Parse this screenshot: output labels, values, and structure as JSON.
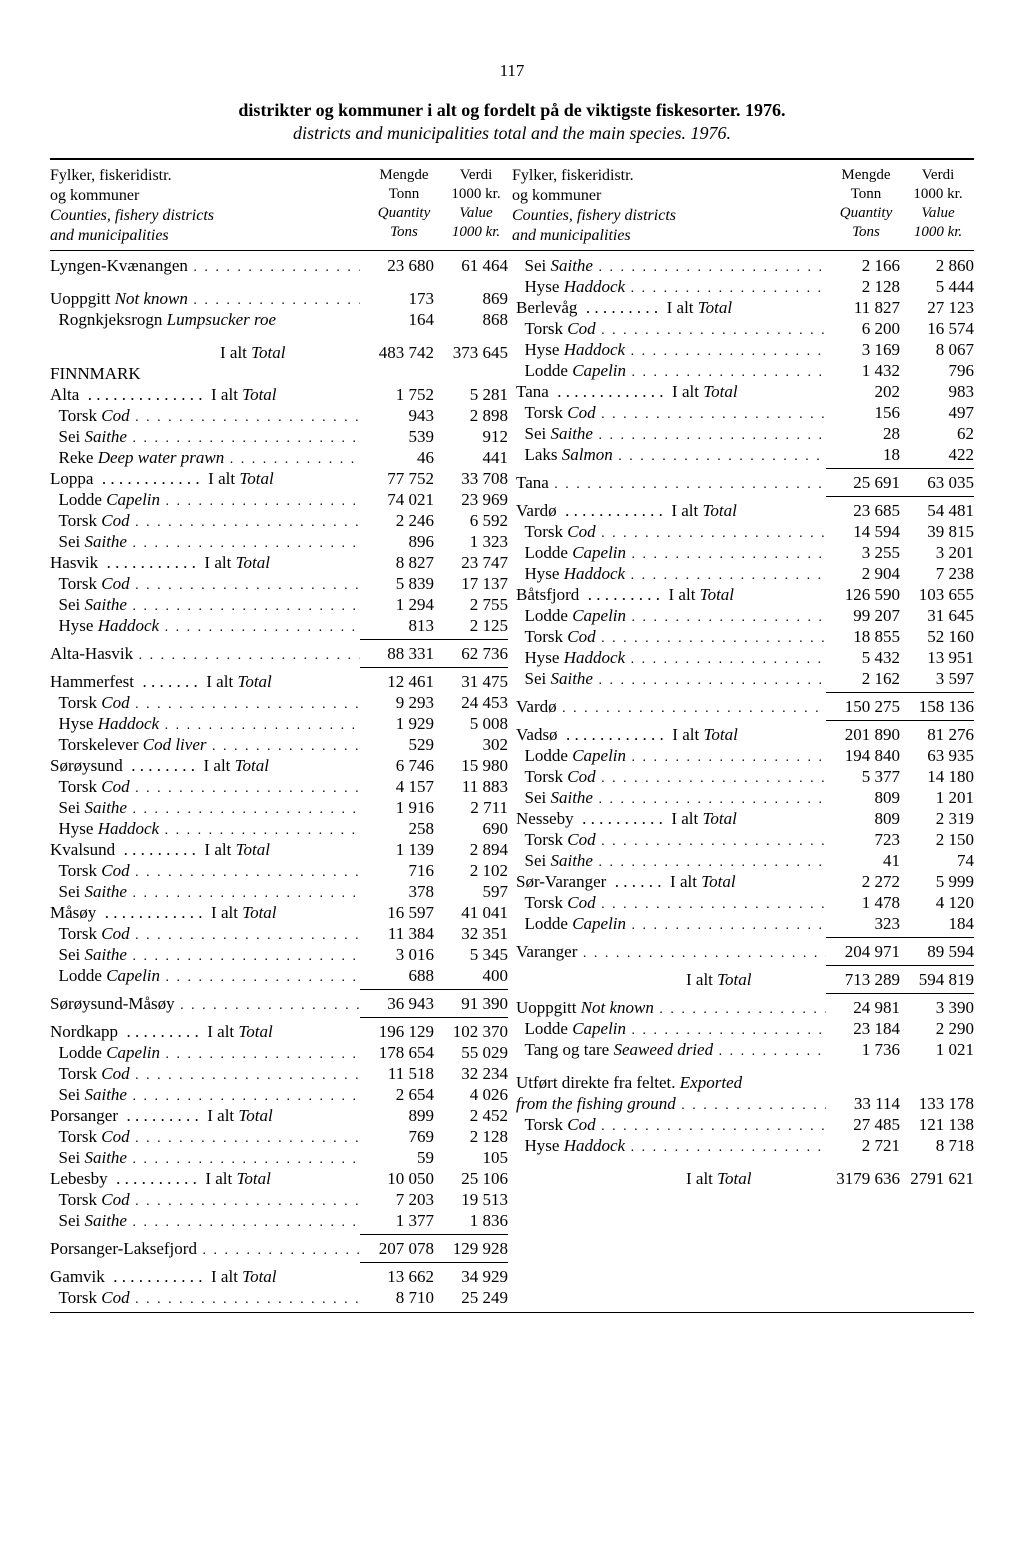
{
  "page_number": "117",
  "title_no": "distrikter og kommuner i alt og fordelt på de viktigste fiskesorter. 1976.",
  "title_en": "districts and municipalities total and the main species. 1976.",
  "header": {
    "label_no_1": "Fylker, fiskeridistr.",
    "label_no_2": "og kommuner",
    "label_en_1": "Counties, fishery districts",
    "label_en_2": "and municipalities",
    "qty_no": "Mengde",
    "qty_en": "Quantity",
    "qty_unit_no": "Tonn",
    "qty_unit_en": "Tons",
    "val_no": "Verdi",
    "val_en": "Value",
    "val_unit": "1000 kr."
  },
  "left": [
    {
      "label": "Lyngen-Kvænangen",
      "v1": "23 680",
      "v2": "61 464"
    },
    {
      "blank": true
    },
    {
      "label": "Uoppgitt <span class='it'>Not known</span>",
      "v1": "173",
      "v2": "869"
    },
    {
      "label": "&nbsp;&nbsp;Rognkjeksrogn <span class='it'>Lumpsucker roe</span>",
      "v1": "164",
      "v2": "868",
      "nodots": true
    },
    {
      "blank": true
    },
    {
      "label": "<span style='display:inline-block;width:170px'></span>I alt <span class='it'>Total</span>",
      "v1": "483 742",
      "v2": "373 645",
      "nodots": true
    },
    {
      "label": "<span class='region'>FINNMARK</span>",
      "v1": "",
      "v2": "",
      "nodots": true
    },
    {
      "label": "Alta &nbsp;.&nbsp;.&nbsp;.&nbsp;.&nbsp;.&nbsp;.&nbsp;.&nbsp;.&nbsp;.&nbsp;.&nbsp;.&nbsp;.&nbsp;.&nbsp;.&nbsp; I alt <span class='it'>Total</span>",
      "v1": "1 752",
      "v2": "5 281",
      "nodots": true
    },
    {
      "label": "&nbsp;&nbsp;Torsk <span class='it'>Cod</span>",
      "v1": "943",
      "v2": "2 898"
    },
    {
      "label": "&nbsp;&nbsp;Sei <span class='it'>Saithe</span>",
      "v1": "539",
      "v2": "912"
    },
    {
      "label": "&nbsp;&nbsp;Reke <span class='it'>Deep water prawn</span>",
      "v1": "46",
      "v2": "441"
    },
    {
      "label": "Loppa &nbsp;.&nbsp;.&nbsp;.&nbsp;.&nbsp;.&nbsp;.&nbsp;.&nbsp;.&nbsp;.&nbsp;.&nbsp;.&nbsp;.&nbsp; I alt <span class='it'>Total</span>",
      "v1": "77 752",
      "v2": "33 708",
      "nodots": true
    },
    {
      "label": "&nbsp;&nbsp;Lodde <span class='it'>Capelin</span>",
      "v1": "74 021",
      "v2": "23 969"
    },
    {
      "label": "&nbsp;&nbsp;Torsk <span class='it'>Cod</span>",
      "v1": "2 246",
      "v2": "6 592"
    },
    {
      "label": "&nbsp;&nbsp;Sei <span class='it'>Saithe</span>",
      "v1": "896",
      "v2": "1 323"
    },
    {
      "label": "Hasvik &nbsp;.&nbsp;.&nbsp;.&nbsp;.&nbsp;.&nbsp;.&nbsp;.&nbsp;.&nbsp;.&nbsp;.&nbsp;.&nbsp; I alt <span class='it'>Total</span>",
      "v1": "8 827",
      "v2": "23 747",
      "nodots": true
    },
    {
      "label": "&nbsp;&nbsp;Torsk <span class='it'>Cod</span>",
      "v1": "5 839",
      "v2": "17 137"
    },
    {
      "label": "&nbsp;&nbsp;Sei <span class='it'>Saithe</span>",
      "v1": "1 294",
      "v2": "2 755"
    },
    {
      "label": "&nbsp;&nbsp;Hyse <span class='it'>Haddock</span>",
      "v1": "813",
      "v2": "2 125"
    },
    {
      "sep": true
    },
    {
      "label": "Alta-Hasvik",
      "v1": "88 331",
      "v2": "62 736"
    },
    {
      "sep": true
    },
    {
      "label": "Hammerfest &nbsp;.&nbsp;.&nbsp;.&nbsp;.&nbsp;.&nbsp;.&nbsp;.&nbsp; I alt <span class='it'>Total</span>",
      "v1": "12 461",
      "v2": "31 475",
      "nodots": true
    },
    {
      "label": "&nbsp;&nbsp;Torsk <span class='it'>Cod</span>",
      "v1": "9 293",
      "v2": "24 453"
    },
    {
      "label": "&nbsp;&nbsp;Hyse <span class='it'>Haddock</span>",
      "v1": "1 929",
      "v2": "5 008"
    },
    {
      "label": "&nbsp;&nbsp;Torskelever <span class='it'>Cod liver</span>",
      "v1": "529",
      "v2": "302"
    },
    {
      "label": "Sørøysund &nbsp;.&nbsp;.&nbsp;.&nbsp;.&nbsp;.&nbsp;.&nbsp;.&nbsp;.&nbsp; I alt <span class='it'>Total</span>",
      "v1": "6 746",
      "v2": "15 980",
      "nodots": true
    },
    {
      "label": "&nbsp;&nbsp;Torsk <span class='it'>Cod</span>",
      "v1": "4 157",
      "v2": "11 883"
    },
    {
      "label": "&nbsp;&nbsp;Sei <span class='it'>Saithe</span>",
      "v1": "1 916",
      "v2": "2 711"
    },
    {
      "label": "&nbsp;&nbsp;Hyse <span class='it'>Haddock</span>",
      "v1": "258",
      "v2": "690"
    },
    {
      "label": "Kvalsund &nbsp;.&nbsp;.&nbsp;.&nbsp;.&nbsp;.&nbsp;.&nbsp;.&nbsp;.&nbsp;.&nbsp; I alt <span class='it'>Total</span>",
      "v1": "1 139",
      "v2": "2 894",
      "nodots": true
    },
    {
      "label": "&nbsp;&nbsp;Torsk <span class='it'>Cod</span>",
      "v1": "716",
      "v2": "2 102"
    },
    {
      "label": "&nbsp;&nbsp;Sei <span class='it'>Saithe</span>",
      "v1": "378",
      "v2": "597"
    },
    {
      "label": "Måsøy &nbsp;.&nbsp;.&nbsp;.&nbsp;.&nbsp;.&nbsp;.&nbsp;.&nbsp;.&nbsp;.&nbsp;.&nbsp;.&nbsp;.&nbsp; I alt <span class='it'>Total</span>",
      "v1": "16 597",
      "v2": "41 041",
      "nodots": true
    },
    {
      "label": "&nbsp;&nbsp;Torsk <span class='it'>Cod</span>",
      "v1": "11 384",
      "v2": "32 351"
    },
    {
      "label": "&nbsp;&nbsp;Sei <span class='it'>Saithe</span>",
      "v1": "3 016",
      "v2": "5 345"
    },
    {
      "label": "&nbsp;&nbsp;Lodde <span class='it'>Capelin</span>",
      "v1": "688",
      "v2": "400"
    },
    {
      "sep": true
    },
    {
      "label": "Sørøysund-Måsøy",
      "v1": "36 943",
      "v2": "91 390"
    },
    {
      "sep": true
    },
    {
      "label": "Nordkapp &nbsp;.&nbsp;.&nbsp;.&nbsp;.&nbsp;.&nbsp;.&nbsp;.&nbsp;.&nbsp;.&nbsp; I alt <span class='it'>Total</span>",
      "v1": "196 129",
      "v2": "102 370",
      "nodots": true
    },
    {
      "label": "&nbsp;&nbsp;Lodde <span class='it'>Capelin</span>",
      "v1": "178 654",
      "v2": "55 029"
    },
    {
      "label": "&nbsp;&nbsp;Torsk <span class='it'>Cod</span>",
      "v1": "11 518",
      "v2": "32 234"
    },
    {
      "label": "&nbsp;&nbsp;Sei <span class='it'>Saithe</span>",
      "v1": "2 654",
      "v2": "4 026"
    },
    {
      "label": "Porsanger &nbsp;.&nbsp;.&nbsp;.&nbsp;.&nbsp;.&nbsp;.&nbsp;.&nbsp;.&nbsp;.&nbsp; I alt <span class='it'>Total</span>",
      "v1": "899",
      "v2": "2 452",
      "nodots": true
    },
    {
      "label": "&nbsp;&nbsp;Torsk <span class='it'>Cod</span>",
      "v1": "769",
      "v2": "2 128"
    },
    {
      "label": "&nbsp;&nbsp;Sei <span class='it'>Saithe</span>",
      "v1": "59",
      "v2": "105"
    },
    {
      "label": "Lebesby &nbsp;.&nbsp;.&nbsp;.&nbsp;.&nbsp;.&nbsp;.&nbsp;.&nbsp;.&nbsp;.&nbsp;.&nbsp; I alt <span class='it'>Total</span>",
      "v1": "10 050",
      "v2": "25 106",
      "nodots": true
    },
    {
      "label": "&nbsp;&nbsp;Torsk <span class='it'>Cod</span>",
      "v1": "7 203",
      "v2": "19 513"
    },
    {
      "label": "&nbsp;&nbsp;Sei <span class='it'>Saithe</span>",
      "v1": "1 377",
      "v2": "1 836"
    },
    {
      "sep": true
    },
    {
      "label": "Porsanger-Laksefjord",
      "v1": "207 078",
      "v2": "129 928"
    },
    {
      "sep": true
    },
    {
      "label": "Gamvik &nbsp;.&nbsp;.&nbsp;.&nbsp;.&nbsp;.&nbsp;.&nbsp;.&nbsp;.&nbsp;.&nbsp;.&nbsp;.&nbsp; I alt <span class='it'>Total</span>",
      "v1": "13 662",
      "v2": "34 929",
      "nodots": true
    },
    {
      "label": "&nbsp;&nbsp;Torsk <span class='it'>Cod</span>",
      "v1": "8 710",
      "v2": "25 249"
    }
  ],
  "right": [
    {
      "label": "&nbsp;&nbsp;Sei <span class='it'>Saithe</span>",
      "v1": "2 166",
      "v2": "2 860"
    },
    {
      "label": "&nbsp;&nbsp;Hyse <span class='it'>Haddock</span>",
      "v1": "2 128",
      "v2": "5 444"
    },
    {
      "label": "Berlevåg &nbsp;.&nbsp;.&nbsp;.&nbsp;.&nbsp;.&nbsp;.&nbsp;.&nbsp;.&nbsp;.&nbsp; I alt <span class='it'>Total</span>",
      "v1": "11 827",
      "v2": "27 123",
      "nodots": true
    },
    {
      "label": "&nbsp;&nbsp;Torsk <span class='it'>Cod</span>",
      "v1": "6 200",
      "v2": "16 574"
    },
    {
      "label": "&nbsp;&nbsp;Hyse <span class='it'>Haddock</span>",
      "v1": "3 169",
      "v2": "8 067"
    },
    {
      "label": "&nbsp;&nbsp;Lodde <span class='it'>Capelin</span>",
      "v1": "1 432",
      "v2": "796"
    },
    {
      "label": "Tana &nbsp;.&nbsp;.&nbsp;.&nbsp;.&nbsp;.&nbsp;.&nbsp;.&nbsp;.&nbsp;.&nbsp;.&nbsp;.&nbsp;.&nbsp;.&nbsp; I alt <span class='it'>Total</span>",
      "v1": "202",
      "v2": "983",
      "nodots": true
    },
    {
      "label": "&nbsp;&nbsp;Torsk <span class='it'>Cod</span>",
      "v1": "156",
      "v2": "497"
    },
    {
      "label": "&nbsp;&nbsp;Sei <span class='it'>Saithe</span>",
      "v1": "28",
      "v2": "62"
    },
    {
      "label": "&nbsp;&nbsp;Laks <span class='it'>Salmon</span>",
      "v1": "18",
      "v2": "422"
    },
    {
      "sep": true
    },
    {
      "label": "Tana",
      "v1": "25 691",
      "v2": "63 035"
    },
    {
      "sep": true
    },
    {
      "label": "Vardø &nbsp;.&nbsp;.&nbsp;.&nbsp;.&nbsp;.&nbsp;.&nbsp;.&nbsp;.&nbsp;.&nbsp;.&nbsp;.&nbsp;.&nbsp; I alt <span class='it'>Total</span>",
      "v1": "23 685",
      "v2": "54 481",
      "nodots": true
    },
    {
      "label": "&nbsp;&nbsp;Torsk <span class='it'>Cod</span>",
      "v1": "14 594",
      "v2": "39 815"
    },
    {
      "label": "&nbsp;&nbsp;Lodde <span class='it'>Capelin</span>",
      "v1": "3 255",
      "v2": "3 201"
    },
    {
      "label": "&nbsp;&nbsp;Hyse <span class='it'>Haddock</span>",
      "v1": "2 904",
      "v2": "7 238"
    },
    {
      "label": "Båtsfjord &nbsp;.&nbsp;.&nbsp;.&nbsp;.&nbsp;.&nbsp;.&nbsp;.&nbsp;.&nbsp;.&nbsp; I alt <span class='it'>Total</span>",
      "v1": "126 590",
      "v2": "103 655",
      "nodots": true
    },
    {
      "label": "&nbsp;&nbsp;Lodde <span class='it'>Capelin</span>",
      "v1": "99 207",
      "v2": "31 645"
    },
    {
      "label": "&nbsp;&nbsp;Torsk <span class='it'>Cod</span>",
      "v1": "18 855",
      "v2": "52 160"
    },
    {
      "label": "&nbsp;&nbsp;Hyse <span class='it'>Haddock</span>",
      "v1": "5 432",
      "v2": "13 951"
    },
    {
      "label": "&nbsp;&nbsp;Sei <span class='it'>Saithe</span>",
      "v1": "2 162",
      "v2": "3 597"
    },
    {
      "sep": true
    },
    {
      "label": "Vardø",
      "v1": "150 275",
      "v2": "158 136"
    },
    {
      "sep": true
    },
    {
      "label": "Vadsø &nbsp;.&nbsp;.&nbsp;.&nbsp;.&nbsp;.&nbsp;.&nbsp;.&nbsp;.&nbsp;.&nbsp;.&nbsp;.&nbsp;.&nbsp; I alt <span class='it'>Total</span>",
      "v1": "201 890",
      "v2": "81 276",
      "nodots": true
    },
    {
      "label": "&nbsp;&nbsp;Lodde <span class='it'>Capelin</span>",
      "v1": "194 840",
      "v2": "63 935"
    },
    {
      "label": "&nbsp;&nbsp;Torsk <span class='it'>Cod</span>",
      "v1": "5 377",
      "v2": "14 180"
    },
    {
      "label": "&nbsp;&nbsp;Sei <span class='it'>Saithe</span>",
      "v1": "809",
      "v2": "1 201"
    },
    {
      "label": "Nesseby &nbsp;.&nbsp;.&nbsp;.&nbsp;.&nbsp;.&nbsp;.&nbsp;.&nbsp;.&nbsp;.&nbsp;.&nbsp; I alt <span class='it'>Total</span>",
      "v1": "809",
      "v2": "2 319",
      "nodots": true
    },
    {
      "label": "&nbsp;&nbsp;Torsk <span class='it'>Cod</span>",
      "v1": "723",
      "v2": "2 150"
    },
    {
      "label": "&nbsp;&nbsp;Sei <span class='it'>Saithe</span>",
      "v1": "41",
      "v2": "74"
    },
    {
      "label": "Sør-Varanger &nbsp;.&nbsp;.&nbsp;.&nbsp;.&nbsp;.&nbsp;.&nbsp; I alt <span class='it'>Total</span>",
      "v1": "2 272",
      "v2": "5 999",
      "nodots": true
    },
    {
      "label": "&nbsp;&nbsp;Torsk <span class='it'>Cod</span>",
      "v1": "1 478",
      "v2": "4 120"
    },
    {
      "label": "&nbsp;&nbsp;Lodde <span class='it'>Capelin</span>",
      "v1": "323",
      "v2": "184"
    },
    {
      "sep": true
    },
    {
      "label": "Varanger",
      "v1": "204 971",
      "v2": "89 594"
    },
    {
      "sep": true
    },
    {
      "label": "<span style='display:inline-block;width:170px'></span>I alt <span class='it'>Total</span>",
      "v1": "713 289",
      "v2": "594 819",
      "nodots": true
    },
    {
      "sep": true
    },
    {
      "label": "Uoppgitt <span class='it'>Not known</span>",
      "v1": "24 981",
      "v2": "3 390"
    },
    {
      "label": "&nbsp;&nbsp;Lodde <span class='it'>Capelin</span>",
      "v1": "23 184",
      "v2": "2 290"
    },
    {
      "label": "&nbsp;&nbsp;Tang og tare <span class='it'>Seaweed dried</span>",
      "v1": "1 736",
      "v2": "1 021"
    },
    {
      "blank": true
    },
    {
      "label": "Utført direkte fra feltet. <span class='it'>Exported</span>",
      "v1": "",
      "v2": "",
      "nodots": true
    },
    {
      "label": "<span class='it'>from the fishing ground</span>",
      "v1": "33 114",
      "v2": "133 178"
    },
    {
      "label": "&nbsp;&nbsp;Torsk <span class='it'>Cod</span>",
      "v1": "27 485",
      "v2": "121 138"
    },
    {
      "label": "&nbsp;&nbsp;Hyse <span class='it'>Haddock</span>",
      "v1": "2 721",
      "v2": "8 718"
    },
    {
      "blank": true
    },
    {
      "label": "<span style='display:inline-block;width:170px'></span>I alt <span class='it'>Total</span>",
      "v1": "3179 636",
      "v2": "2791 621",
      "nodots": true
    }
  ]
}
